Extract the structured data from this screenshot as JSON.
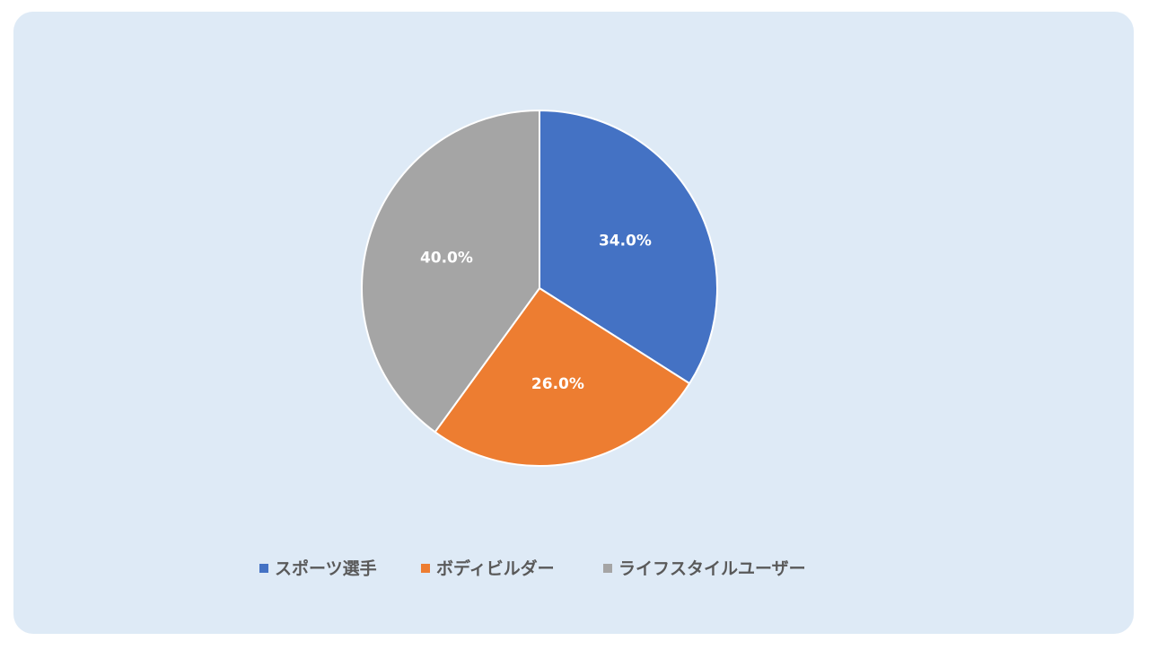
{
  "chart_data": {
    "type": "pie",
    "categories": [
      "スポーツ選手",
      "ボディビルダー",
      "ライフスタイルユーザー"
    ],
    "values": [
      34,
      26,
      40
    ],
    "value_labels": [
      "34.0%",
      "26.0%",
      "40.0%"
    ],
    "colors": [
      "#4472c4",
      "#ed7d31",
      "#a5a5a5"
    ],
    "legend": "bottom"
  }
}
